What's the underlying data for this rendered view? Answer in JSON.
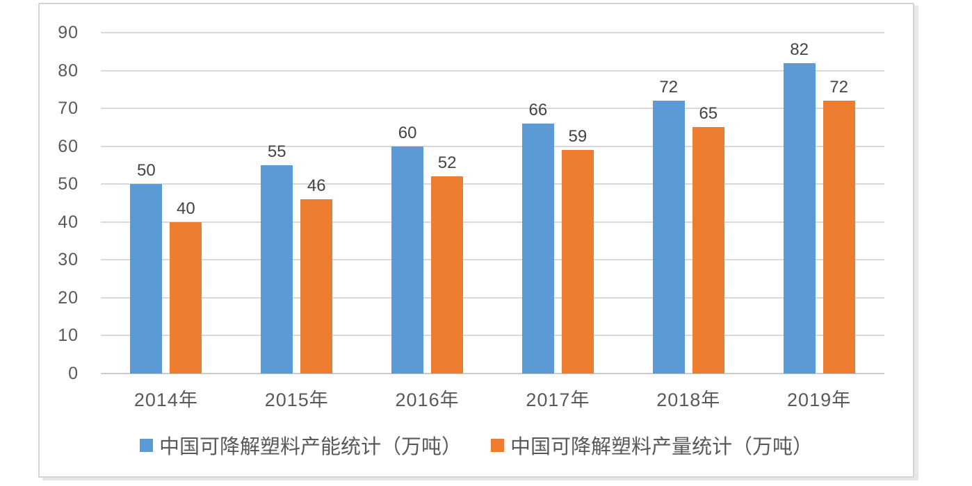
{
  "chart_data": {
    "type": "bar",
    "title": "",
    "categories": [
      "2014年",
      "2015年",
      "2016年",
      "2017年",
      "2018年",
      "2019年"
    ],
    "series": [
      {
        "name": "中国可降解塑料产能统计（万吨）",
        "color": "#5B9BD5",
        "values": [
          50,
          55,
          60,
          66,
          72,
          82
        ]
      },
      {
        "name": "中国可降解塑料产量统计（万吨）",
        "color": "#ED7D31",
        "values": [
          40,
          46,
          52,
          59,
          65,
          72
        ]
      }
    ],
    "yticks": [
      0,
      10,
      20,
      30,
      40,
      50,
      60,
      70,
      80,
      90
    ],
    "ylim": [
      0,
      90
    ],
    "xlabel": "",
    "ylabel": "",
    "grid": true,
    "gridline_color": "#d9d9d9",
    "data_labels": true,
    "legend_position": "bottom"
  }
}
